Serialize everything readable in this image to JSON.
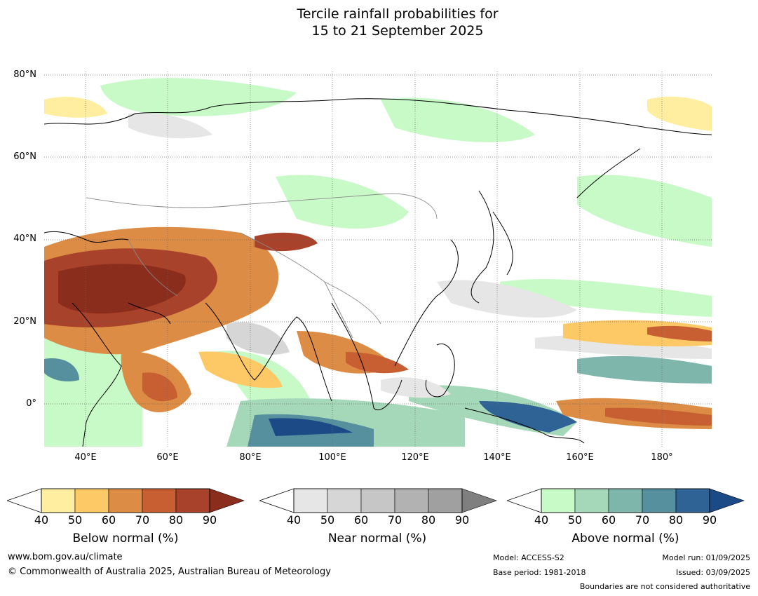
{
  "title": {
    "line1": "Tercile rainfall probabilities for",
    "line2": "15 to 21 September 2025"
  },
  "lat_labels": [
    "80°N",
    "60°N",
    "40°N",
    "20°N",
    "0°"
  ],
  "lon_labels": [
    "40°E",
    "60°E",
    "80°E",
    "100°E",
    "120°E",
    "140°E",
    "160°E",
    "180°"
  ],
  "colorbars": [
    {
      "label": "Below normal (%)",
      "ticks": [
        "40",
        "50",
        "60",
        "70",
        "80",
        "90"
      ],
      "colors": [
        "#ffeea0",
        "#fdc966",
        "#dc8c45",
        "#c75f32",
        "#a8422a",
        "#8a2d1c"
      ]
    },
    {
      "label": "Near normal (%)",
      "ticks": [
        "40",
        "50",
        "60",
        "70",
        "80",
        "90"
      ],
      "colors": [
        "#e6e6e6",
        "#d6d6d6",
        "#c6c6c6",
        "#b2b2b2",
        "#a0a0a0",
        "#7f7f7f"
      ]
    },
    {
      "label": "Above normal (%)",
      "ticks": [
        "40",
        "50",
        "60",
        "70",
        "80",
        "90"
      ],
      "colors": [
        "#c8fac8",
        "#a5d8b8",
        "#7eb6ab",
        "#56909e",
        "#2f6396",
        "#1c4a86"
      ]
    }
  ],
  "footer": {
    "website": "www.bom.gov.au/climate",
    "copyright": "© Commonwealth of Australia 2025, Australian Bureau of Meteorology",
    "model": "Model: ACCESS-S2",
    "base_period": "Base period: 1981-2018",
    "model_run": "Model run: 01/09/2025",
    "issued": "Issued: 03/09/2025",
    "disclaimer": "Boundaries are not considered authoritative"
  }
}
